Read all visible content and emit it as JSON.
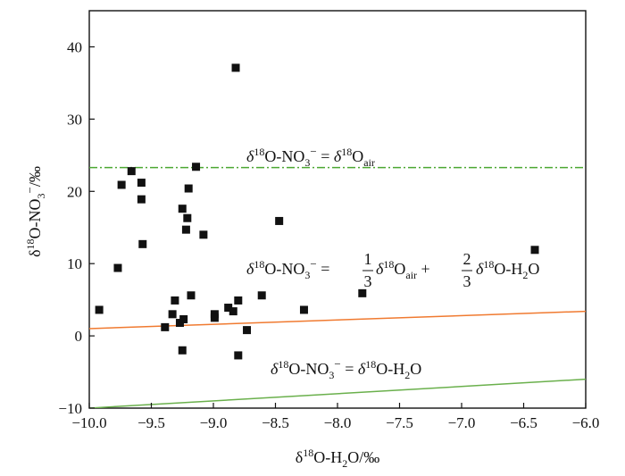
{
  "chart_data": {
    "type": "scatter",
    "xlabel": "δ18O-H2O/‰",
    "ylabel": "δ18O-NO3−/‰",
    "xlim": [
      -10.0,
      -6.0
    ],
    "ylim": [
      -10,
      45
    ],
    "x_ticks": [
      -10.0,
      -9.5,
      -9.0,
      -8.5,
      -8.0,
      -7.5,
      -7.0,
      -6.5,
      -6.0
    ],
    "x_tick_labels": [
      "−10.0",
      "−9.5",
      "−9.0",
      "−8.5",
      "−8.0",
      "−7.5",
      "−7.0",
      "−6.5",
      "−6.0"
    ],
    "y_ticks": [
      -10,
      0,
      10,
      20,
      30,
      40
    ],
    "y_tick_labels": [
      "−10",
      "0",
      "10",
      "20",
      "30",
      "40"
    ],
    "grid": false,
    "points": [
      {
        "x": -9.92,
        "y": 3.6
      },
      {
        "x": -9.77,
        "y": 9.4
      },
      {
        "x": -9.74,
        "y": 20.9
      },
      {
        "x": -9.66,
        "y": 22.8
      },
      {
        "x": -9.58,
        "y": 21.2
      },
      {
        "x": -9.58,
        "y": 18.9
      },
      {
        "x": -9.57,
        "y": 12.7
      },
      {
        "x": -9.39,
        "y": 1.2
      },
      {
        "x": -9.33,
        "y": 3.0
      },
      {
        "x": -9.31,
        "y": 4.9
      },
      {
        "x": -9.27,
        "y": 1.8
      },
      {
        "x": -9.25,
        "y": -2.0
      },
      {
        "x": -9.24,
        "y": 2.3
      },
      {
        "x": -9.25,
        "y": 17.6
      },
      {
        "x": -9.22,
        "y": 14.7
      },
      {
        "x": -9.21,
        "y": 16.3
      },
      {
        "x": -9.2,
        "y": 20.4
      },
      {
        "x": -9.18,
        "y": 5.6
      },
      {
        "x": -9.14,
        "y": 23.4
      },
      {
        "x": -9.08,
        "y": 14.0
      },
      {
        "x": -8.99,
        "y": 3.0
      },
      {
        "x": -8.99,
        "y": 2.5
      },
      {
        "x": -8.88,
        "y": 3.9
      },
      {
        "x": -8.84,
        "y": 3.4
      },
      {
        "x": -8.82,
        "y": 37.1
      },
      {
        "x": -8.8,
        "y": 4.9
      },
      {
        "x": -8.8,
        "y": -2.7
      },
      {
        "x": -8.73,
        "y": 0.8
      },
      {
        "x": -8.61,
        "y": 5.6
      },
      {
        "x": -8.47,
        "y": 15.9
      },
      {
        "x": -8.27,
        "y": 3.6
      },
      {
        "x": -7.8,
        "y": 5.9
      },
      {
        "x": -6.41,
        "y": 11.9
      }
    ],
    "lines": [
      {
        "style": "dash-dot",
        "color": "#4ca832",
        "x": [
          -10.0,
          -6.0
        ],
        "y": [
          23.3,
          23.3
        ]
      },
      {
        "style": "solid",
        "color": "#f07a30",
        "x": [
          -10.0,
          -6.0
        ],
        "y": [
          1.0,
          3.4
        ]
      },
      {
        "style": "solid",
        "color": "#6ab04c",
        "x": [
          -10.0,
          -6.0
        ],
        "y": [
          -10.0,
          -6.0
        ]
      }
    ],
    "marker_color": "#111111"
  }
}
